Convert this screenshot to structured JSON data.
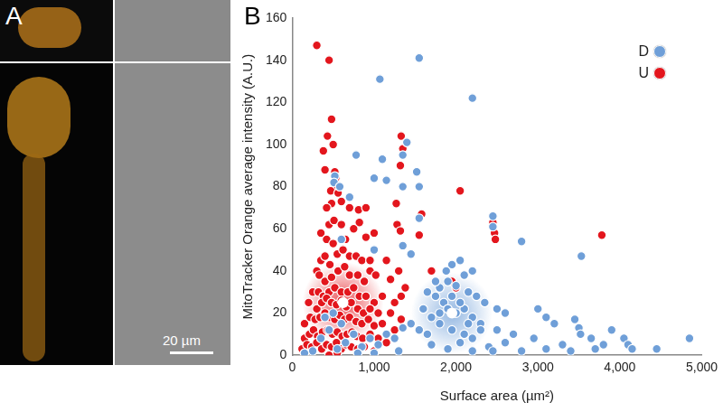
{
  "image_panel": {
    "label": "A",
    "scale_bar": "20 µm"
  },
  "chart_data": {
    "type": "scatter",
    "panel_label": "B",
    "x_label": "Surface area (µm²)",
    "y_label": "MitoTracker Orange average intensity (A.U.)",
    "xlim": [
      0,
      5000
    ],
    "xticks": [
      0,
      1000,
      2000,
      3000,
      4000,
      5000
    ],
    "ylim": [
      0,
      160
    ],
    "yticks": [
      0,
      20,
      40,
      60,
      80,
      100,
      120,
      140,
      160
    ],
    "grid": false,
    "legend": "top-right",
    "series": [
      {
        "name": "D",
        "color": "#6f9fd8",
        "marker": "circle",
        "mean": {
          "x": 1950,
          "y": 20
        },
        "x": [
          1550,
          1070,
          2200,
          1400,
          1350,
          780,
          1100,
          1000,
          1150,
          1520,
          1550,
          1350,
          520,
          510,
          580,
          700,
          1550,
          2450,
          2450,
          2800,
          3530,
          1450,
          1000,
          1350,
          600,
          2200,
          2100,
          1950,
          1880,
          2050,
          1900,
          2000,
          2150,
          1800,
          1750,
          1850,
          2250,
          2350,
          2500,
          2600,
          3000,
          3100,
          3200,
          3450,
          3500,
          3520,
          4050,
          4100,
          4450,
          4850,
          3800,
          3650,
          3300,
          2950,
          2700,
          2500,
          2300,
          2100,
          1950,
          1800,
          1700,
          1650,
          1550,
          1450,
          1350,
          1250,
          1150,
          1050,
          950,
          850,
          750,
          650,
          550,
          450,
          350,
          250,
          150,
          400,
          500,
          600,
          1700,
          1900,
          2050,
          2200,
          2400,
          2600,
          2800,
          3100,
          3400,
          2000,
          2100,
          1900,
          1800,
          2200,
          2300,
          1600,
          1650,
          1750,
          1950,
          2050,
          2150,
          2450,
          2200,
          1300,
          1000,
          800,
          3900,
          3700,
          4150
        ],
        "values": [
          141,
          131,
          122,
          101,
          95,
          95,
          93,
          84,
          83,
          87,
          80,
          80,
          85,
          82,
          80,
          75,
          65,
          66,
          61,
          54,
          47,
          48,
          50,
          52,
          55,
          40,
          38,
          43,
          40,
          45,
          35,
          33,
          30,
          32,
          28,
          25,
          28,
          25,
          22,
          20,
          22,
          18,
          15,
          17,
          13,
          10,
          8,
          5,
          3,
          8,
          5,
          8,
          5,
          8,
          10,
          12,
          15,
          10,
          12,
          15,
          18,
          10,
          12,
          15,
          13,
          8,
          10,
          5,
          8,
          4,
          10,
          6,
          3,
          12,
          8,
          2,
          1,
          18,
          20,
          15,
          5,
          3,
          6,
          8,
          4,
          6,
          2,
          3,
          2,
          20,
          22,
          22,
          20,
          18,
          12,
          22,
          30,
          35,
          28,
          25,
          15,
          2,
          2,
          2,
          1,
          1,
          12,
          3,
          3
        ]
      },
      {
        "name": "U",
        "color": "#e3161d",
        "marker": "circle",
        "mean": {
          "x": 620,
          "y": 25
        },
        "x": [
          300,
          450,
          480,
          430,
          380,
          500,
          400,
          520,
          530,
          550,
          470,
          560,
          480,
          600,
          420,
          700,
          810,
          900,
          1330,
          1350,
          1320,
          1580,
          1270,
          2050,
          3780,
          2450,
          2470,
          2480,
          1280,
          1320,
          820,
          750,
          450,
          510,
          600,
          350,
          420,
          500,
          650,
          900,
          1000,
          1150,
          1300,
          1550,
          1700,
          2000,
          1950,
          300,
          350,
          400,
          460,
          550,
          620,
          700,
          780,
          850,
          950,
          330,
          400,
          480,
          560,
          640,
          700,
          800,
          880,
          950,
          1020,
          1200,
          1330,
          1380,
          250,
          320,
          380,
          450,
          520,
          600,
          680,
          750,
          820,
          900,
          1000,
          1100,
          1250,
          200,
          300,
          360,
          420,
          480,
          540,
          600,
          660,
          720,
          800,
          870,
          950,
          1050,
          1200,
          150,
          220,
          280,
          340,
          400,
          460,
          520,
          580,
          640,
          700,
          780,
          850,
          930,
          1000,
          1100,
          1250,
          1330,
          150,
          210,
          260,
          310,
          370,
          430,
          490,
          550,
          610,
          670,
          730,
          790,
          860,
          950,
          1050,
          1150,
          120,
          180,
          240,
          300,
          360,
          420,
          480,
          540,
          600,
          660,
          720,
          800,
          880,
          1000,
          450,
          550
        ],
        "values": [
          147,
          140,
          112,
          104,
          97,
          100,
          88,
          87,
          84,
          80,
          78,
          77,
          72,
          73,
          70,
          70,
          69,
          70,
          104,
          98,
          90,
          67,
          72,
          78,
          57,
          63,
          58,
          55,
          62,
          59,
          63,
          60,
          62,
          64,
          62,
          58,
          55,
          53,
          55,
          56,
          58,
          45,
          40,
          57,
          40,
          32,
          35,
          40,
          45,
          47,
          43,
          48,
          50,
          47,
          47,
          45,
          45,
          38,
          35,
          37,
          40,
          42,
          38,
          38,
          35,
          40,
          38,
          36,
          28,
          32,
          30,
          30,
          28,
          30,
          32,
          30,
          30,
          32,
          28,
          28,
          25,
          28,
          25,
          25,
          22,
          25,
          27,
          25,
          24,
          26,
          23,
          25,
          22,
          20,
          22,
          20,
          20,
          15,
          18,
          17,
          18,
          20,
          18,
          17,
          19,
          17,
          18,
          16,
          15,
          17,
          14,
          15,
          12,
          17,
          8,
          10,
          12,
          9,
          11,
          12,
          10,
          11,
          9,
          10,
          11,
          9,
          8,
          10,
          8,
          6,
          3,
          5,
          4,
          6,
          3,
          5,
          4,
          6,
          3,
          5,
          4,
          3,
          4,
          2,
          0,
          1
        ]
      }
    ]
  }
}
